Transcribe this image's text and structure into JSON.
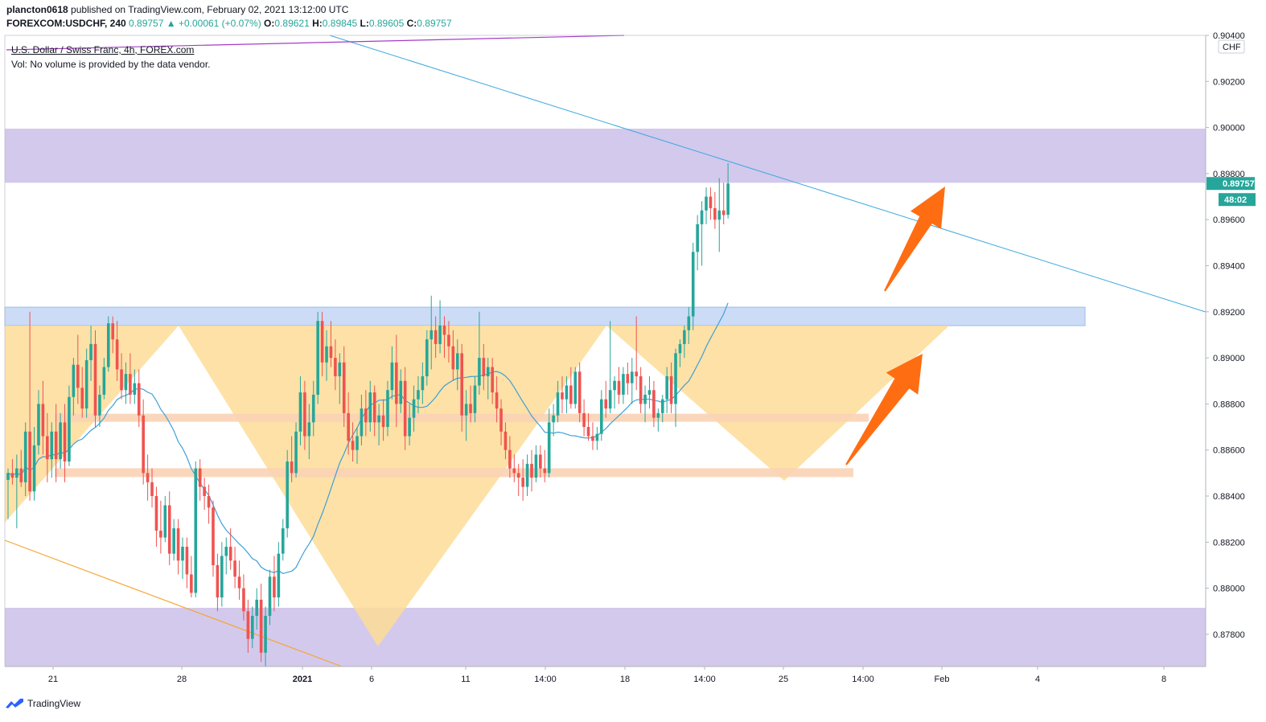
{
  "header": {
    "publisher": "plancton0618",
    "published_text": "published on TradingView.com, February 02, 2021 13:12:00 UTC",
    "symbol": "FOREXCOM:USDCHF, 240",
    "change": "0.89757 ▲ +0.00061 (+0.07%)",
    "open_label": "O:",
    "open": "0.89621",
    "high_label": "H:",
    "high": "0.89845",
    "low_label": "L:",
    "low": "0.89605",
    "close_label": "C:",
    "close": "0.89757"
  },
  "legend": {
    "title": "U.S. Dollar / Swiss Franc, 4h, FOREX.com",
    "volume_note": "Vol: No volume is provided by the data vendor."
  },
  "price_axis": {
    "currency": "CHF",
    "ticks": [
      "0.90400",
      "0.90200",
      "0.90000",
      "0.89800",
      "0.89600",
      "0.89400",
      "0.89200",
      "0.89000",
      "0.88800",
      "0.88600",
      "0.88400",
      "0.88200",
      "0.88000",
      "0.87800"
    ],
    "current_price": "0.89757",
    "countdown": "48:02"
  },
  "time_axis": {
    "ticks": [
      "21",
      "28",
      "2021",
      "6",
      "11",
      "14:00",
      "18",
      "14:00",
      "25",
      "14:00",
      "Feb",
      "4",
      "8"
    ]
  },
  "footer": {
    "brand": "TradingView"
  },
  "colors": {
    "up": "#26a69a",
    "down": "#ef5350",
    "zone_purple": "#d3c9ec",
    "zone_blue": "#c6d8f5",
    "pattern_fill": "#fddc98",
    "support_band": "#f9d3b5",
    "arrow": "#ff6d12",
    "trendline_blue": "#3ba7e0",
    "trendline_purple": "#a53cc7",
    "trendline_orange": "#f7a532",
    "ma_line": "#3f9fd8"
  },
  "chart_data": {
    "type": "candlestick",
    "y_range": [
      0.8766,
      0.904
    ],
    "time_labels": [
      "21",
      "28",
      "2021",
      "6",
      "11",
      "14:00",
      "18",
      "14:00",
      "25",
      "14:00",
      "Feb",
      "4",
      "8"
    ],
    "current_price": 0.89757,
    "zones": [
      {
        "kind": "supply",
        "from": 0.8976,
        "to": 0.89995
      },
      {
        "kind": "resistance",
        "from": 0.8914,
        "to": 0.8922
      },
      {
        "kind": "demand",
        "from": 0.8766,
        "to": 0.87915
      }
    ],
    "support_levels": [
      0.8874,
      0.885
    ],
    "candles": [
      {
        "o": 0.8847,
        "h": 0.8852,
        "l": 0.883,
        "c": 0.885
      },
      {
        "o": 0.885,
        "h": 0.8856,
        "l": 0.8845,
        "c": 0.8848
      },
      {
        "o": 0.8848,
        "h": 0.8858,
        "l": 0.8826,
        "c": 0.8852
      },
      {
        "o": 0.8852,
        "h": 0.886,
        "l": 0.8844,
        "c": 0.8846
      },
      {
        "o": 0.8846,
        "h": 0.8872,
        "l": 0.884,
        "c": 0.8868
      },
      {
        "o": 0.8868,
        "h": 0.892,
        "l": 0.8838,
        "c": 0.8842
      },
      {
        "o": 0.8842,
        "h": 0.887,
        "l": 0.8838,
        "c": 0.8862
      },
      {
        "o": 0.8862,
        "h": 0.8886,
        "l": 0.8858,
        "c": 0.888
      },
      {
        "o": 0.888,
        "h": 0.889,
        "l": 0.8858,
        "c": 0.8866
      },
      {
        "o": 0.8866,
        "h": 0.8876,
        "l": 0.8846,
        "c": 0.8856
      },
      {
        "o": 0.8856,
        "h": 0.8872,
        "l": 0.8848,
        "c": 0.8868
      },
      {
        "o": 0.8868,
        "h": 0.888,
        "l": 0.8846,
        "c": 0.8856
      },
      {
        "o": 0.8856,
        "h": 0.8876,
        "l": 0.8852,
        "c": 0.8872
      },
      {
        "o": 0.8872,
        "h": 0.888,
        "l": 0.8846,
        "c": 0.8855
      },
      {
        "o": 0.8855,
        "h": 0.8888,
        "l": 0.8853,
        "c": 0.8883
      },
      {
        "o": 0.8883,
        "h": 0.89,
        "l": 0.8875,
        "c": 0.8897
      },
      {
        "o": 0.8897,
        "h": 0.891,
        "l": 0.888,
        "c": 0.8887
      },
      {
        "o": 0.8887,
        "h": 0.8896,
        "l": 0.8874,
        "c": 0.8878
      },
      {
        "o": 0.8878,
        "h": 0.8904,
        "l": 0.8874,
        "c": 0.8899
      },
      {
        "o": 0.8899,
        "h": 0.8914,
        "l": 0.889,
        "c": 0.8906
      },
      {
        "o": 0.8906,
        "h": 0.8912,
        "l": 0.887,
        "c": 0.8875
      },
      {
        "o": 0.8875,
        "h": 0.8888,
        "l": 0.887,
        "c": 0.8884
      },
      {
        "o": 0.8884,
        "h": 0.89,
        "l": 0.8882,
        "c": 0.8896
      },
      {
        "o": 0.8896,
        "h": 0.8918,
        "l": 0.8894,
        "c": 0.8915
      },
      {
        "o": 0.8915,
        "h": 0.8918,
        "l": 0.8902,
        "c": 0.8908
      },
      {
        "o": 0.8908,
        "h": 0.8916,
        "l": 0.889,
        "c": 0.8895
      },
      {
        "o": 0.8895,
        "h": 0.8902,
        "l": 0.8882,
        "c": 0.8886
      },
      {
        "o": 0.8886,
        "h": 0.8898,
        "l": 0.888,
        "c": 0.8893
      },
      {
        "o": 0.8893,
        "h": 0.8902,
        "l": 0.888,
        "c": 0.8884
      },
      {
        "o": 0.8884,
        "h": 0.8895,
        "l": 0.888,
        "c": 0.8889
      },
      {
        "o": 0.8889,
        "h": 0.8895,
        "l": 0.887,
        "c": 0.8875
      },
      {
        "o": 0.8875,
        "h": 0.8882,
        "l": 0.8845,
        "c": 0.885
      },
      {
        "o": 0.885,
        "h": 0.8858,
        "l": 0.8838,
        "c": 0.8846
      },
      {
        "o": 0.8846,
        "h": 0.8852,
        "l": 0.8835,
        "c": 0.884
      },
      {
        "o": 0.884,
        "h": 0.8844,
        "l": 0.8818,
        "c": 0.8825
      },
      {
        "o": 0.8825,
        "h": 0.8838,
        "l": 0.8815,
        "c": 0.8822
      },
      {
        "o": 0.8822,
        "h": 0.884,
        "l": 0.882,
        "c": 0.8836
      },
      {
        "o": 0.8836,
        "h": 0.8842,
        "l": 0.881,
        "c": 0.8815
      },
      {
        "o": 0.8815,
        "h": 0.883,
        "l": 0.8812,
        "c": 0.8826
      },
      {
        "o": 0.8826,
        "h": 0.883,
        "l": 0.8806,
        "c": 0.8812
      },
      {
        "o": 0.8812,
        "h": 0.8822,
        "l": 0.8804,
        "c": 0.8818
      },
      {
        "o": 0.8818,
        "h": 0.8822,
        "l": 0.88,
        "c": 0.8806
      },
      {
        "o": 0.8806,
        "h": 0.8814,
        "l": 0.8796,
        "c": 0.8798
      },
      {
        "o": 0.8798,
        "h": 0.8855,
        "l": 0.8796,
        "c": 0.8852
      },
      {
        "o": 0.8852,
        "h": 0.8856,
        "l": 0.8838,
        "c": 0.8844
      },
      {
        "o": 0.8844,
        "h": 0.8848,
        "l": 0.8834,
        "c": 0.884
      },
      {
        "o": 0.884,
        "h": 0.8845,
        "l": 0.8828,
        "c": 0.8835
      },
      {
        "o": 0.8835,
        "h": 0.8838,
        "l": 0.8805,
        "c": 0.881
      },
      {
        "o": 0.881,
        "h": 0.8815,
        "l": 0.879,
        "c": 0.8796
      },
      {
        "o": 0.8796,
        "h": 0.882,
        "l": 0.8792,
        "c": 0.8814
      },
      {
        "o": 0.8814,
        "h": 0.8822,
        "l": 0.8806,
        "c": 0.8818
      },
      {
        "o": 0.8818,
        "h": 0.8826,
        "l": 0.8808,
        "c": 0.8812
      },
      {
        "o": 0.8812,
        "h": 0.8818,
        "l": 0.88,
        "c": 0.8805
      },
      {
        "o": 0.8805,
        "h": 0.8812,
        "l": 0.8795,
        "c": 0.88
      },
      {
        "o": 0.88,
        "h": 0.8806,
        "l": 0.8786,
        "c": 0.879
      },
      {
        "o": 0.879,
        "h": 0.8795,
        "l": 0.8772,
        "c": 0.8778
      },
      {
        "o": 0.8778,
        "h": 0.8792,
        "l": 0.8774,
        "c": 0.8788
      },
      {
        "o": 0.8788,
        "h": 0.88,
        "l": 0.8782,
        "c": 0.8795
      },
      {
        "o": 0.8795,
        "h": 0.8802,
        "l": 0.8768,
        "c": 0.8772
      },
      {
        "o": 0.8772,
        "h": 0.8792,
        "l": 0.8766,
        "c": 0.8788
      },
      {
        "o": 0.8788,
        "h": 0.8808,
        "l": 0.8784,
        "c": 0.8805
      },
      {
        "o": 0.8805,
        "h": 0.8814,
        "l": 0.879,
        "c": 0.8796
      },
      {
        "o": 0.8796,
        "h": 0.882,
        "l": 0.8792,
        "c": 0.8815
      },
      {
        "o": 0.8815,
        "h": 0.883,
        "l": 0.8812,
        "c": 0.8826
      },
      {
        "o": 0.8826,
        "h": 0.886,
        "l": 0.8822,
        "c": 0.8855
      },
      {
        "o": 0.8855,
        "h": 0.8866,
        "l": 0.8846,
        "c": 0.885
      },
      {
        "o": 0.885,
        "h": 0.8872,
        "l": 0.8848,
        "c": 0.8868
      },
      {
        "o": 0.8868,
        "h": 0.8892,
        "l": 0.8862,
        "c": 0.8885
      },
      {
        "o": 0.8885,
        "h": 0.889,
        "l": 0.886,
        "c": 0.8866
      },
      {
        "o": 0.8866,
        "h": 0.888,
        "l": 0.8856,
        "c": 0.8872
      },
      {
        "o": 0.8872,
        "h": 0.889,
        "l": 0.8866,
        "c": 0.8884
      },
      {
        "o": 0.8884,
        "h": 0.892,
        "l": 0.888,
        "c": 0.8916
      },
      {
        "o": 0.8916,
        "h": 0.892,
        "l": 0.8892,
        "c": 0.8898
      },
      {
        "o": 0.8898,
        "h": 0.8912,
        "l": 0.889,
        "c": 0.8905
      },
      {
        "o": 0.8905,
        "h": 0.8916,
        "l": 0.8896,
        "c": 0.89
      },
      {
        "o": 0.89,
        "h": 0.8908,
        "l": 0.8886,
        "c": 0.8892
      },
      {
        "o": 0.8892,
        "h": 0.8902,
        "l": 0.888,
        "c": 0.8898
      },
      {
        "o": 0.8898,
        "h": 0.8905,
        "l": 0.887,
        "c": 0.8876
      },
      {
        "o": 0.8876,
        "h": 0.8885,
        "l": 0.8858,
        "c": 0.8864
      },
      {
        "o": 0.8864,
        "h": 0.8872,
        "l": 0.8855,
        "c": 0.886
      },
      {
        "o": 0.886,
        "h": 0.887,
        "l": 0.8854,
        "c": 0.8866
      },
      {
        "o": 0.8866,
        "h": 0.8884,
        "l": 0.8862,
        "c": 0.8878
      },
      {
        "o": 0.8878,
        "h": 0.8886,
        "l": 0.8866,
        "c": 0.8872
      },
      {
        "o": 0.8872,
        "h": 0.889,
        "l": 0.8868,
        "c": 0.8885
      },
      {
        "o": 0.8885,
        "h": 0.8888,
        "l": 0.8866,
        "c": 0.8872
      },
      {
        "o": 0.8872,
        "h": 0.888,
        "l": 0.8862,
        "c": 0.8875
      },
      {
        "o": 0.8875,
        "h": 0.8882,
        "l": 0.8864,
        "c": 0.887
      },
      {
        "o": 0.887,
        "h": 0.889,
        "l": 0.8866,
        "c": 0.8886
      },
      {
        "o": 0.8886,
        "h": 0.8905,
        "l": 0.8882,
        "c": 0.8898
      },
      {
        "o": 0.8898,
        "h": 0.891,
        "l": 0.887,
        "c": 0.888
      },
      {
        "o": 0.888,
        "h": 0.8895,
        "l": 0.8876,
        "c": 0.889
      },
      {
        "o": 0.889,
        "h": 0.8896,
        "l": 0.886,
        "c": 0.8866
      },
      {
        "o": 0.8866,
        "h": 0.888,
        "l": 0.8862,
        "c": 0.8874
      },
      {
        "o": 0.8874,
        "h": 0.8888,
        "l": 0.8868,
        "c": 0.8882
      },
      {
        "o": 0.8882,
        "h": 0.8892,
        "l": 0.8876,
        "c": 0.8886
      },
      {
        "o": 0.8886,
        "h": 0.8898,
        "l": 0.888,
        "c": 0.8892
      },
      {
        "o": 0.8892,
        "h": 0.8912,
        "l": 0.8888,
        "c": 0.8908
      },
      {
        "o": 0.8908,
        "h": 0.8927,
        "l": 0.8895,
        "c": 0.8912
      },
      {
        "o": 0.8912,
        "h": 0.8918,
        "l": 0.89,
        "c": 0.8906
      },
      {
        "o": 0.8906,
        "h": 0.8925,
        "l": 0.8902,
        "c": 0.8914
      },
      {
        "o": 0.8914,
        "h": 0.8918,
        "l": 0.89,
        "c": 0.891
      },
      {
        "o": 0.891,
        "h": 0.8916,
        "l": 0.8898,
        "c": 0.8905
      },
      {
        "o": 0.8905,
        "h": 0.8912,
        "l": 0.889,
        "c": 0.8895
      },
      {
        "o": 0.8895,
        "h": 0.8908,
        "l": 0.8886,
        "c": 0.8902
      },
      {
        "o": 0.8902,
        "h": 0.8906,
        "l": 0.8868,
        "c": 0.8875
      },
      {
        "o": 0.8875,
        "h": 0.8886,
        "l": 0.8864,
        "c": 0.888
      },
      {
        "o": 0.888,
        "h": 0.8888,
        "l": 0.8872,
        "c": 0.8876
      },
      {
        "o": 0.8876,
        "h": 0.8892,
        "l": 0.8872,
        "c": 0.8888
      },
      {
        "o": 0.8888,
        "h": 0.892,
        "l": 0.8884,
        "c": 0.89
      },
      {
        "o": 0.89,
        "h": 0.8906,
        "l": 0.8886,
        "c": 0.8892
      },
      {
        "o": 0.8892,
        "h": 0.89,
        "l": 0.8882,
        "c": 0.8896
      },
      {
        "o": 0.8896,
        "h": 0.89,
        "l": 0.888,
        "c": 0.8885
      },
      {
        "o": 0.8885,
        "h": 0.8892,
        "l": 0.8872,
        "c": 0.8878
      },
      {
        "o": 0.8878,
        "h": 0.8882,
        "l": 0.8862,
        "c": 0.8868
      },
      {
        "o": 0.8868,
        "h": 0.8872,
        "l": 0.8856,
        "c": 0.886
      },
      {
        "o": 0.886,
        "h": 0.8866,
        "l": 0.8848,
        "c": 0.8852
      },
      {
        "o": 0.8852,
        "h": 0.8858,
        "l": 0.8846,
        "c": 0.885
      },
      {
        "o": 0.885,
        "h": 0.8854,
        "l": 0.884,
        "c": 0.8848
      },
      {
        "o": 0.8848,
        "h": 0.8856,
        "l": 0.8838,
        "c": 0.8844
      },
      {
        "o": 0.8844,
        "h": 0.8858,
        "l": 0.884,
        "c": 0.8854
      },
      {
        "o": 0.8854,
        "h": 0.886,
        "l": 0.8842,
        "c": 0.8848
      },
      {
        "o": 0.8848,
        "h": 0.8862,
        "l": 0.8846,
        "c": 0.8858
      },
      {
        "o": 0.8858,
        "h": 0.8862,
        "l": 0.8848,
        "c": 0.8852
      },
      {
        "o": 0.8852,
        "h": 0.886,
        "l": 0.8846,
        "c": 0.885
      },
      {
        "o": 0.885,
        "h": 0.8878,
        "l": 0.8848,
        "c": 0.8872
      },
      {
        "o": 0.8872,
        "h": 0.888,
        "l": 0.8866,
        "c": 0.8875
      },
      {
        "o": 0.8875,
        "h": 0.889,
        "l": 0.8872,
        "c": 0.8885
      },
      {
        "o": 0.8885,
        "h": 0.8892,
        "l": 0.8876,
        "c": 0.8882
      },
      {
        "o": 0.8882,
        "h": 0.8892,
        "l": 0.8876,
        "c": 0.8888
      },
      {
        "o": 0.8888,
        "h": 0.8896,
        "l": 0.8878,
        "c": 0.888
      },
      {
        "o": 0.888,
        "h": 0.8896,
        "l": 0.8878,
        "c": 0.8894
      },
      {
        "o": 0.8894,
        "h": 0.8898,
        "l": 0.8872,
        "c": 0.8876
      },
      {
        "o": 0.8876,
        "h": 0.8882,
        "l": 0.8866,
        "c": 0.887
      },
      {
        "o": 0.887,
        "h": 0.8876,
        "l": 0.8864,
        "c": 0.8866
      },
      {
        "o": 0.8866,
        "h": 0.8872,
        "l": 0.886,
        "c": 0.8864
      },
      {
        "o": 0.8864,
        "h": 0.887,
        "l": 0.886,
        "c": 0.8867
      },
      {
        "o": 0.8867,
        "h": 0.8886,
        "l": 0.8864,
        "c": 0.8882
      },
      {
        "o": 0.8882,
        "h": 0.889,
        "l": 0.8874,
        "c": 0.8878
      },
      {
        "o": 0.8878,
        "h": 0.8916,
        "l": 0.8876,
        "c": 0.8886
      },
      {
        "o": 0.8886,
        "h": 0.8892,
        "l": 0.8878,
        "c": 0.889
      },
      {
        "o": 0.889,
        "h": 0.8896,
        "l": 0.888,
        "c": 0.8884
      },
      {
        "o": 0.8884,
        "h": 0.8896,
        "l": 0.888,
        "c": 0.8893
      },
      {
        "o": 0.8893,
        "h": 0.8898,
        "l": 0.8884,
        "c": 0.8889
      },
      {
        "o": 0.8889,
        "h": 0.89,
        "l": 0.888,
        "c": 0.8894
      },
      {
        "o": 0.8894,
        "h": 0.8918,
        "l": 0.8886,
        "c": 0.8892
      },
      {
        "o": 0.8892,
        "h": 0.8896,
        "l": 0.8876,
        "c": 0.888
      },
      {
        "o": 0.888,
        "h": 0.8888,
        "l": 0.8872,
        "c": 0.8884
      },
      {
        "o": 0.8884,
        "h": 0.8892,
        "l": 0.8878,
        "c": 0.8886
      },
      {
        "o": 0.8886,
        "h": 0.889,
        "l": 0.887,
        "c": 0.8874
      },
      {
        "o": 0.8874,
        "h": 0.8878,
        "l": 0.8868,
        "c": 0.8876
      },
      {
        "o": 0.8876,
        "h": 0.8884,
        "l": 0.8872,
        "c": 0.8882
      },
      {
        "o": 0.8882,
        "h": 0.8896,
        "l": 0.8876,
        "c": 0.8892
      },
      {
        "o": 0.8892,
        "h": 0.8898,
        "l": 0.8876,
        "c": 0.888
      },
      {
        "o": 0.888,
        "h": 0.8904,
        "l": 0.887,
        "c": 0.8902
      },
      {
        "o": 0.8902,
        "h": 0.8908,
        "l": 0.8896,
        "c": 0.8906
      },
      {
        "o": 0.8906,
        "h": 0.8914,
        "l": 0.89,
        "c": 0.8912
      },
      {
        "o": 0.8912,
        "h": 0.8922,
        "l": 0.8906,
        "c": 0.8918
      },
      {
        "o": 0.8918,
        "h": 0.895,
        "l": 0.8912,
        "c": 0.8946
      },
      {
        "o": 0.8946,
        "h": 0.8962,
        "l": 0.8938,
        "c": 0.8958
      },
      {
        "o": 0.8958,
        "h": 0.8968,
        "l": 0.894,
        "c": 0.8964
      },
      {
        "o": 0.8964,
        "h": 0.8974,
        "l": 0.8958,
        "c": 0.897
      },
      {
        "o": 0.897,
        "h": 0.8974,
        "l": 0.896,
        "c": 0.8965
      },
      {
        "o": 0.8965,
        "h": 0.8972,
        "l": 0.8956,
        "c": 0.896
      },
      {
        "o": 0.896,
        "h": 0.8978,
        "l": 0.8946,
        "c": 0.8964
      },
      {
        "o": 0.8964,
        "h": 0.8976,
        "l": 0.8958,
        "c": 0.8962
      },
      {
        "o": 0.89621,
        "h": 0.89845,
        "l": 0.89605,
        "c": 0.89757
      }
    ]
  }
}
